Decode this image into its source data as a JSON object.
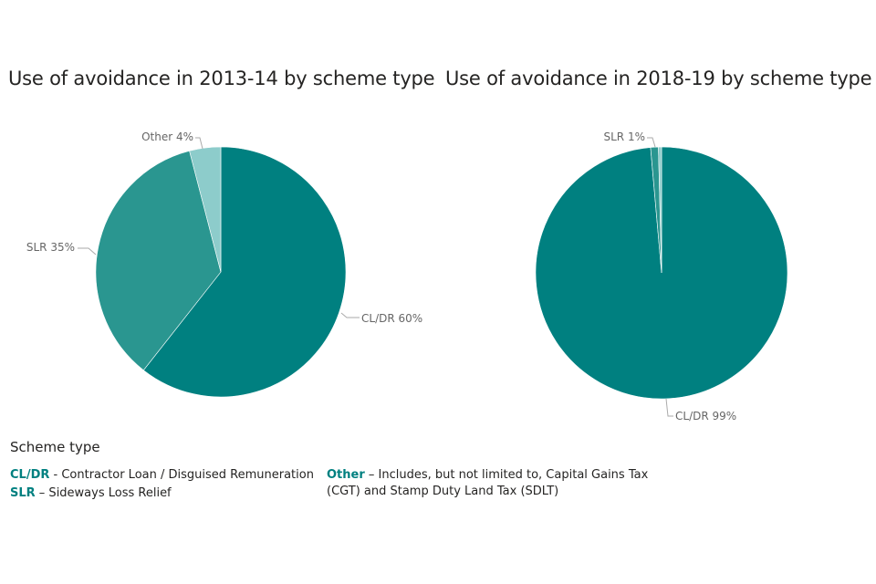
{
  "chart_data": [
    {
      "type": "pie",
      "title": "Use of avoidance in 2013-14 by scheme type",
      "slices": [
        {
          "label": "CL/DR",
          "value": 60,
          "display": "CL/DR 60%",
          "color": "#008080"
        },
        {
          "label": "SLR",
          "value": 35,
          "display": "SLR 35%",
          "color": "#2a9690"
        },
        {
          "label": "Other",
          "value": 4,
          "display": "Other 4%",
          "color": "#8dcccb"
        }
      ]
    },
    {
      "type": "pie",
      "title": "Use of avoidance in 2018-19 by scheme type",
      "slices": [
        {
          "label": "CL/DR",
          "value": 99,
          "display": "CL/DR 99%",
          "color": "#008080"
        },
        {
          "label": "SLR",
          "value": 1,
          "display": "SLR 1%",
          "color": "#2a9690"
        },
        {
          "label": "Other",
          "value": 0.4,
          "display": "",
          "color": "#8dcccb"
        }
      ]
    }
  ],
  "legend": {
    "heading": "Scheme type",
    "items": [
      {
        "abbr": "CL/DR",
        "desc": " - Contractor Loan / Disguised Remuneration"
      },
      {
        "abbr": "SLR",
        "desc": " – Sideways Loss Relief"
      },
      {
        "abbr": "Other",
        "desc": " – Includes, but not limited to, Capital Gains Tax (CGT) and Stamp Duty Land Tax (SDLT)"
      }
    ]
  }
}
